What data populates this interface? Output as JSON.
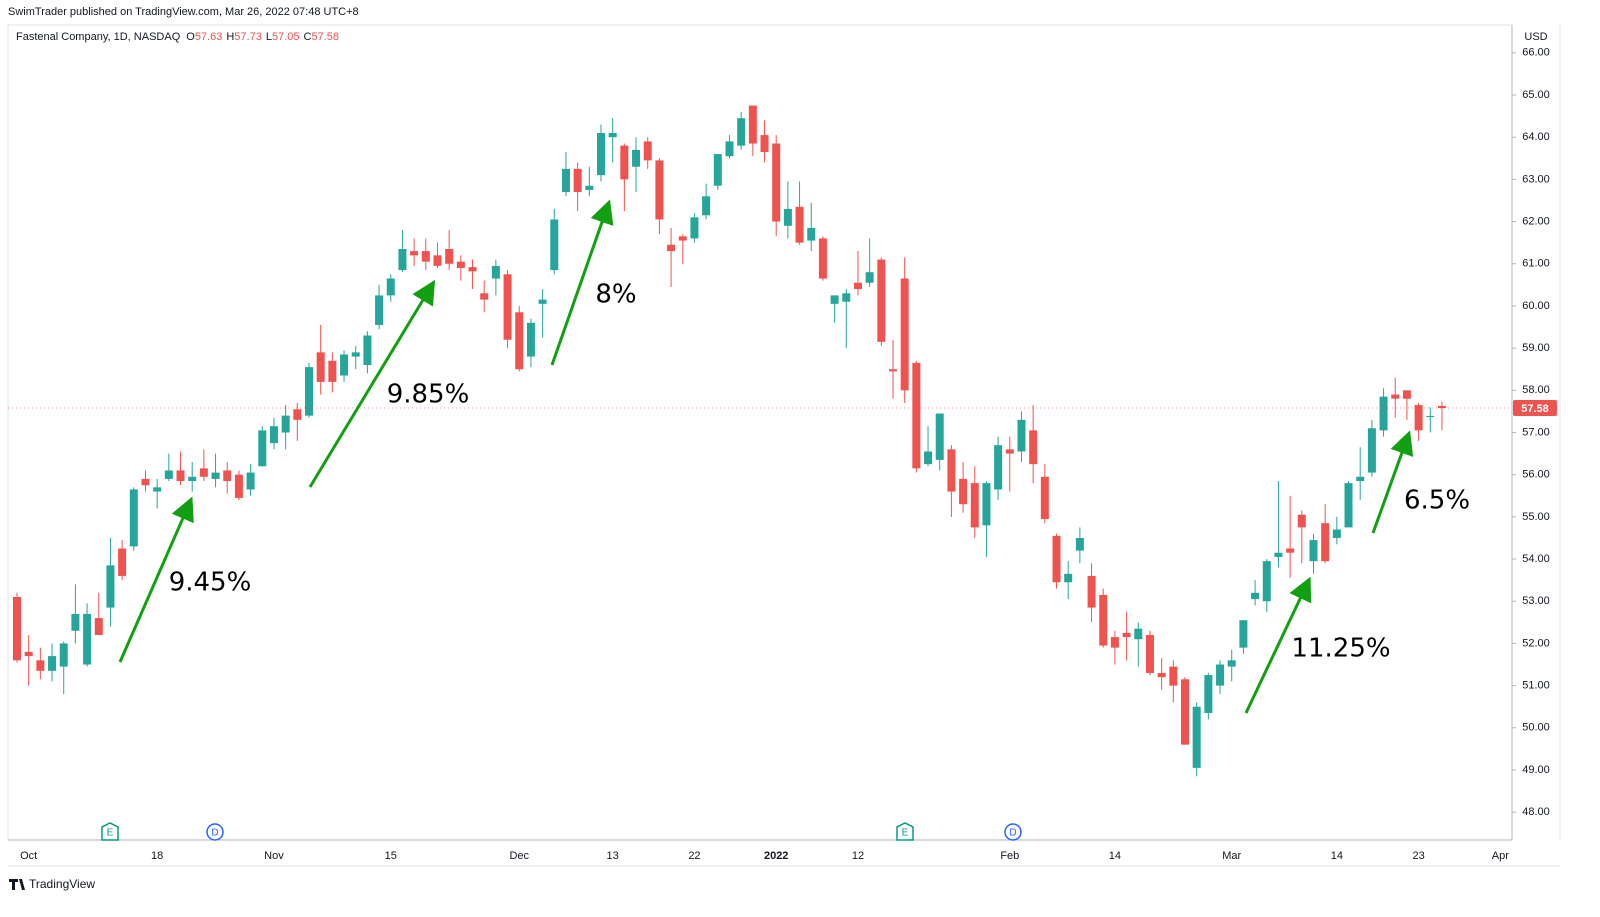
{
  "header": {
    "published": "SwimTrader published on TradingView.com, Mar 26, 2022 07:48 UTC+8",
    "brand": "TradingView"
  },
  "chart_data": {
    "type": "candlestick",
    "title": "Fastenal Company, 1D, NASDAQ",
    "ohlc_prefixes": [
      "O",
      "H",
      "L",
      "C"
    ],
    "currency": "USD",
    "up_color": "#26a69a",
    "down_color": "#ef5350",
    "ylim": [
      47.34,
      66.66
    ],
    "yticks": [
      {
        "value": 48,
        "label": "48.00"
      },
      {
        "value": 49,
        "label": "49.00"
      },
      {
        "value": 50,
        "label": "50.00"
      },
      {
        "value": 51,
        "label": "51.00"
      },
      {
        "value": 52,
        "label": "52.00"
      },
      {
        "value": 53,
        "label": "53.00"
      },
      {
        "value": 54,
        "label": "54.00"
      },
      {
        "value": 55,
        "label": "55.00"
      },
      {
        "value": 56,
        "label": "56.00"
      },
      {
        "value": 57,
        "label": "57.00"
      },
      {
        "value": 58,
        "label": "58.00"
      },
      {
        "value": 59,
        "label": "59.00"
      },
      {
        "value": 60,
        "label": "60.00"
      },
      {
        "value": 61,
        "label": "61.00"
      },
      {
        "value": 62,
        "label": "62.00"
      },
      {
        "value": 63,
        "label": "63.00"
      },
      {
        "value": 64,
        "label": "64.00"
      },
      {
        "value": 65,
        "label": "65.00"
      },
      {
        "value": 66,
        "label": "66.00"
      }
    ],
    "categories": [
      null,
      "Oct",
      null,
      null,
      null,
      null,
      null,
      null,
      null,
      null,
      null,
      null,
      "18",
      null,
      null,
      null,
      null,
      null,
      null,
      null,
      null,
      null,
      "Nov",
      null,
      null,
      null,
      null,
      null,
      null,
      null,
      null,
      null,
      "15",
      null,
      null,
      null,
      null,
      null,
      null,
      null,
      null,
      null,
      null,
      "Dec",
      null,
      null,
      null,
      null,
      null,
      null,
      null,
      "13",
      null,
      null,
      null,
      null,
      null,
      null,
      "22",
      null,
      null,
      null,
      null,
      null,
      null,
      "2022",
      null,
      null,
      null,
      null,
      null,
      null,
      "12",
      null,
      null,
      null,
      null,
      null,
      null,
      null,
      null,
      null,
      null,
      null,
      null,
      "Feb",
      null,
      null,
      null,
      null,
      null,
      null,
      null,
      null,
      "14",
      null,
      null,
      null,
      null,
      null,
      null,
      null,
      null,
      null,
      "Mar",
      null,
      null,
      null,
      null,
      null,
      null,
      null,
      null,
      "14",
      null,
      null,
      null,
      null,
      null,
      null,
      "23",
      null,
      null,
      null,
      null,
      null,
      null,
      "Apr"
    ],
    "open": [
      53.1,
      51.8,
      51.6,
      51.35,
      51.45,
      52.3,
      51.5,
      52.6,
      52.85,
      54.25,
      54.3,
      55.9,
      55.6,
      55.9,
      56.1,
      55.85,
      56.15,
      55.9,
      56.1,
      56.0,
      55.65,
      56.2,
      56.75,
      57.0,
      57.55,
      57.4,
      58.9,
      58.7,
      58.35,
      58.8,
      58.6,
      59.55,
      60.25,
      60.85,
      61.3,
      61.3,
      61.2,
      61.35,
      61.05,
      60.92,
      60.3,
      60.65,
      60.75,
      59.85,
      58.8,
      60.05,
      60.85,
      62.7,
      63.25,
      62.75,
      63.1,
      64.0,
      63.8,
      63.3,
      63.9,
      63.45,
      61.45,
      61.65,
      61.6,
      62.15,
      62.85,
      63.55,
      63.8,
      64.75,
      64.05,
      63.85,
      61.9,
      62.35,
      61.55,
      61.6,
      60.05,
      60.1,
      60.55,
      60.55,
      61.1,
      58.5,
      60.65,
      58.65,
      56.25,
      56.35,
      56.6,
      55.9,
      55.8,
      54.8,
      55.65,
      56.6,
      56.55,
      57.05,
      55.95,
      54.55,
      53.45,
      54.2,
      53.6,
      53.15,
      52.15,
      52.25,
      52.1,
      52.2,
      51.3,
      51.45,
      51.15,
      49.05,
      50.35,
      51.0,
      51.45,
      51.9,
      53.05,
      53.0,
      54.05,
      54.25,
      55.05,
      53.95,
      54.85,
      54.5,
      54.75,
      55.85,
      56.05,
      57.05,
      57.9,
      58.0,
      57.65,
      57.37,
      57.63,
      null,
      null,
      null,
      null,
      null
    ],
    "high": [
      53.2,
      52.2,
      51.9,
      52.0,
      52.05,
      53.4,
      52.95,
      53.2,
      54.5,
      54.45,
      55.7,
      56.1,
      55.9,
      56.5,
      56.55,
      56.3,
      56.6,
      56.5,
      56.3,
      56.1,
      56.25,
      57.15,
      57.35,
      57.65,
      57.7,
      58.65,
      59.55,
      58.9,
      58.95,
      59.05,
      59.4,
      60.5,
      60.75,
      61.8,
      61.6,
      61.6,
      61.5,
      61.8,
      61.2,
      61.1,
      60.6,
      61.1,
      60.85,
      60.0,
      59.7,
      60.4,
      62.3,
      63.65,
      63.4,
      63.3,
      64.3,
      64.45,
      63.85,
      64.0,
      64.0,
      63.5,
      61.85,
      61.7,
      62.2,
      62.9,
      63.6,
      64.05,
      64.6,
      64.75,
      64.4,
      64.05,
      62.95,
      62.95,
      62.45,
      61.65,
      60.25,
      60.4,
      61.3,
      61.6,
      61.15,
      59.2,
      61.15,
      58.7,
      57.15,
      57.45,
      56.7,
      56.3,
      56.2,
      55.85,
      56.9,
      56.9,
      57.5,
      57.65,
      56.25,
      54.6,
      53.95,
      54.75,
      53.9,
      53.3,
      52.3,
      52.75,
      52.5,
      52.3,
      51.65,
      51.6,
      51.2,
      50.6,
      51.3,
      51.6,
      51.85,
      52.55,
      53.5,
      54.0,
      55.85,
      55.5,
      55.15,
      54.6,
      55.3,
      55.0,
      55.85,
      56.65,
      57.3,
      58.05,
      58.3,
      58.0,
      57.7,
      57.6,
      57.73,
      null,
      null,
      null,
      null,
      null
    ],
    "low": [
      51.55,
      51.0,
      51.15,
      51.1,
      50.8,
      52.0,
      51.45,
      52.2,
      52.4,
      53.5,
      54.2,
      55.6,
      55.2,
      55.85,
      55.75,
      55.6,
      55.85,
      55.7,
      55.55,
      55.4,
      55.5,
      56.2,
      56.6,
      56.6,
      56.8,
      57.35,
      57.9,
      57.95,
      58.2,
      58.5,
      58.4,
      59.45,
      60.1,
      60.8,
      60.95,
      60.85,
      60.9,
      60.85,
      60.6,
      60.4,
      59.85,
      60.25,
      59.0,
      58.45,
      58.55,
      59.25,
      60.75,
      62.6,
      62.25,
      62.6,
      62.95,
      63.4,
      62.25,
      62.7,
      63.25,
      61.7,
      60.45,
      61.0,
      61.5,
      62.05,
      62.75,
      63.5,
      63.7,
      63.55,
      63.4,
      61.65,
      61.6,
      61.45,
      61.3,
      60.6,
      59.6,
      59.0,
      60.25,
      60.45,
      59.05,
      57.8,
      57.7,
      56.05,
      56.2,
      56.1,
      55.0,
      55.1,
      54.5,
      54.05,
      55.4,
      55.6,
      56.3,
      55.8,
      54.85,
      53.3,
      53.05,
      53.9,
      52.5,
      51.9,
      51.5,
      51.6,
      51.45,
      51.25,
      50.9,
      50.6,
      49.6,
      48.85,
      50.2,
      50.8,
      51.1,
      51.75,
      52.9,
      52.75,
      53.8,
      53.55,
      53.9,
      53.65,
      53.9,
      54.35,
      54.75,
      55.4,
      55.95,
      56.9,
      57.35,
      57.3,
      56.8,
      57.0,
      57.05,
      null,
      null,
      null,
      null,
      null
    ],
    "close": [
      51.6,
      51.7,
      51.35,
      51.7,
      52.0,
      52.7,
      52.7,
      52.2,
      53.85,
      53.6,
      55.65,
      55.75,
      55.7,
      56.1,
      55.85,
      55.95,
      55.95,
      56.05,
      55.85,
      55.45,
      56.05,
      57.05,
      57.15,
      57.4,
      57.3,
      58.55,
      58.2,
      58.2,
      58.85,
      58.9,
      59.3,
      60.25,
      60.65,
      61.35,
      61.2,
      61.05,
      60.95,
      61.0,
      60.9,
      60.82,
      60.15,
      60.95,
      59.2,
      58.5,
      59.6,
      60.15,
      62.05,
      63.25,
      62.7,
      62.85,
      64.1,
      64.1,
      63.0,
      63.7,
      63.45,
      62.05,
      61.3,
      61.55,
      62.1,
      62.6,
      63.6,
      63.9,
      64.45,
      63.85,
      63.65,
      62.0,
      62.3,
      61.5,
      61.85,
      60.65,
      60.25,
      60.3,
      60.4,
      60.8,
      59.15,
      58.45,
      58.0,
      56.15,
      56.55,
      57.45,
      55.6,
      55.3,
      54.75,
      55.8,
      56.7,
      56.5,
      57.3,
      56.25,
      54.95,
      53.45,
      53.65,
      54.5,
      52.85,
      51.95,
      51.9,
      52.15,
      52.35,
      51.3,
      51.2,
      51.0,
      49.6,
      50.5,
      51.25,
      51.5,
      51.6,
      52.55,
      53.2,
      53.95,
      54.15,
      54.15,
      54.75,
      54.45,
      53.95,
      54.7,
      55.8,
      55.95,
      57.1,
      57.85,
      57.8,
      57.8,
      57.05,
      57.39,
      57.58,
      null,
      null,
      null,
      null,
      null
    ],
    "annotations": [
      "9.45%",
      "9.85%",
      "8%",
      "11.25%",
      "6.5%"
    ],
    "annotation_color": "#12a012",
    "events": [
      {
        "label": "E",
        "color": "#089981"
      },
      {
        "label": "D",
        "color": "#2962ff"
      },
      {
        "label": "E",
        "color": "#089981"
      },
      {
        "label": "D",
        "color": "#2962ff"
      }
    ]
  }
}
